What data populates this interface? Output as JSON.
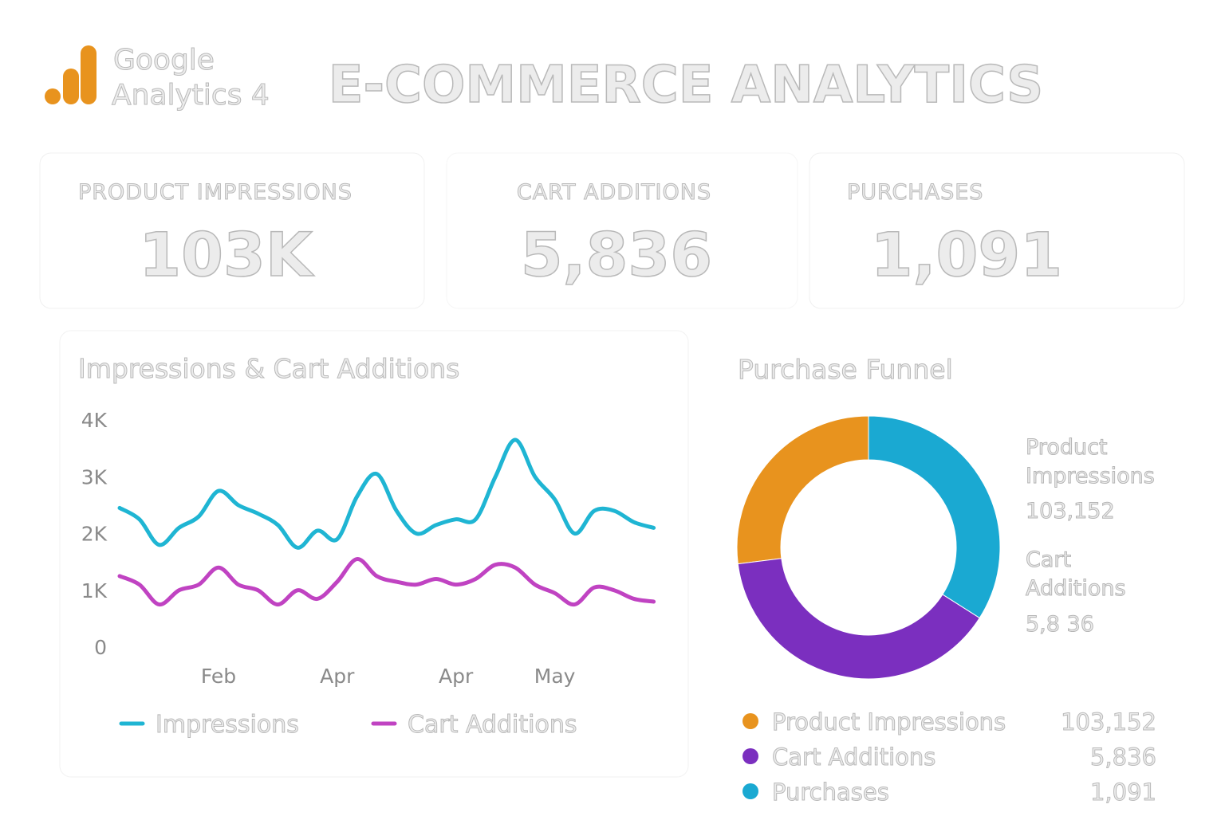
{
  "header": {
    "logo_line1": "Google",
    "logo_line2": "Analytics 4",
    "title": "E-COMMERCE ANALYTICS"
  },
  "kpis": [
    {
      "label": "PRODUCT IMPRESSIONS",
      "value": "103K"
    },
    {
      "label": "CART ADDITIONS",
      "value": "5,836"
    },
    {
      "label": "PURCHASES",
      "value": "1,091"
    }
  ],
  "chart_data": [
    {
      "type": "line",
      "title": "Impressions & Cart Additions",
      "categories": [
        null,
        null,
        null,
        null,
        null,
        "Feb",
        null,
        null,
        null,
        null,
        null,
        "Apr",
        null,
        null,
        null,
        null,
        null,
        "Apr",
        null,
        null,
        null,
        null,
        "May",
        null,
        null,
        null,
        null,
        null
      ],
      "series": [
        {
          "name": "Impressions",
          "color": "#1fb5d3",
          "values": [
            2450,
            2250,
            1800,
            2100,
            2300,
            2750,
            2500,
            2350,
            2150,
            1750,
            2050,
            1900,
            2650,
            3050,
            2400,
            2000,
            2150,
            2250,
            2250,
            3000,
            3650,
            3000,
            2600,
            2000,
            2400,
            2400,
            2200,
            2100
          ]
        },
        {
          "name": "Cart Additions",
          "color": "#c043c2",
          "values": [
            1250,
            1100,
            750,
            1000,
            1100,
            1400,
            1100,
            1000,
            750,
            1000,
            850,
            1150,
            1550,
            1250,
            1150,
            1100,
            1200,
            1100,
            1200,
            1450,
            1400,
            1100,
            950,
            750,
            1050,
            1000,
            850,
            800
          ]
        }
      ],
      "ylim": [
        0,
        4000
      ],
      "yticks": [
        0,
        {
          "value": 1000,
          "label": "1K"
        },
        {
          "value": 2000,
          "label": "2K"
        },
        {
          "value": 3000,
          "label": "3K"
        },
        {
          "value": 4000,
          "label": "4K"
        }
      ],
      "grid": false,
      "legend": "bottom"
    },
    {
      "type": "donut",
      "title": "Purchase Funnel",
      "categories": [
        "Product Impressions",
        "Cart Additions",
        "Purchases"
      ],
      "values": [
        27,
        39,
        34
      ],
      "colors": [
        "#e8931e",
        "#7b2fbf",
        "#1aa9d2"
      ],
      "legend_values": [
        "103,152",
        "5,836",
        "1,091"
      ],
      "callouts": [
        {
          "label": "Product Impressions",
          "value": "103,152"
        },
        {
          "label": "Cart Additions",
          "value": "5,8 36"
        }
      ]
    }
  ]
}
